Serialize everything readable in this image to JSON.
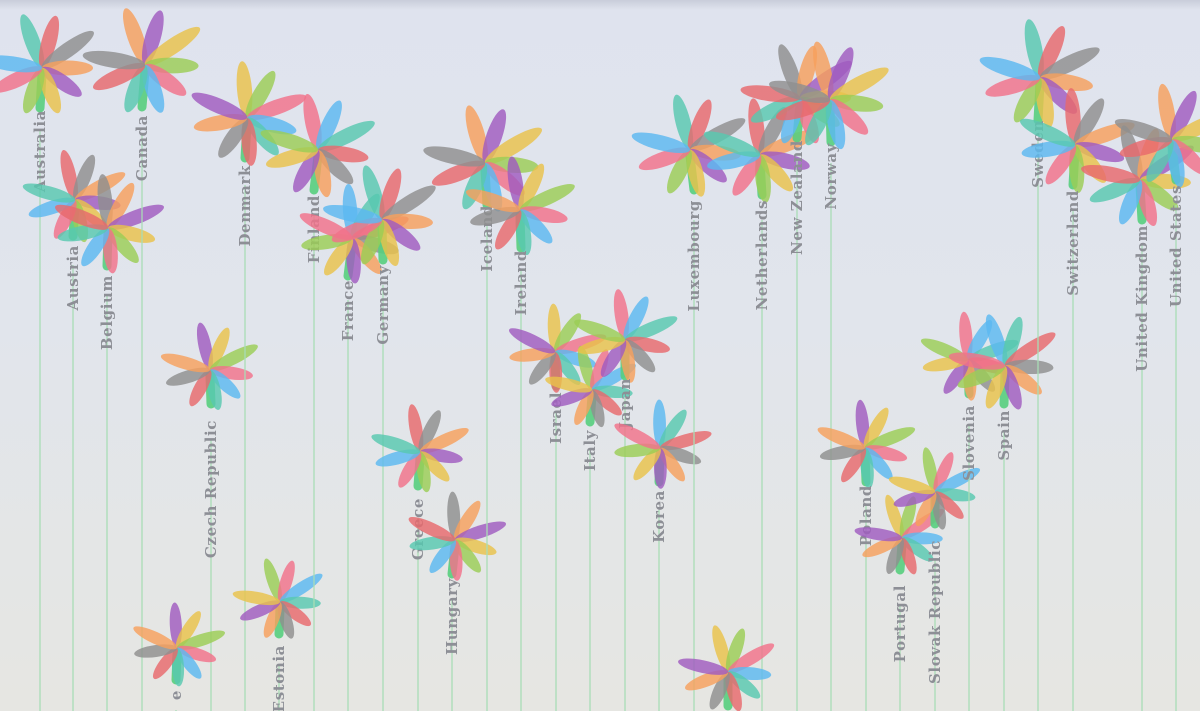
{
  "colors": {
    "stem": "#a9dcb6",
    "stalk": "#58cf7f",
    "label": "#8d8f96",
    "petals": [
      "#58c8b0",
      "#e8696c",
      "#8f8f8f",
      "#f7a05d",
      "#a05cc0",
      "#e9c24a",
      "#9bcd55",
      "#f2728a",
      "#5bb8f0"
    ]
  },
  "flowers": [
    {
      "label": "Australia"
    },
    {
      "label": "Austria"
    },
    {
      "label": "Belgium"
    },
    {
      "label": "Canada"
    },
    {
      "label": "Czech Republic"
    },
    {
      "label": "Denmark"
    },
    {
      "label": "Estonia"
    },
    {
      "label": "Finland"
    },
    {
      "label": "France"
    },
    {
      "label": "Germany"
    },
    {
      "label": "Greece"
    },
    {
      "label": "Hungary"
    },
    {
      "label": "Iceland"
    },
    {
      "label": "Ireland"
    },
    {
      "label": "Israel"
    },
    {
      "label": "Italy"
    },
    {
      "label": "Japan"
    },
    {
      "label": "Korea"
    },
    {
      "label": "Luxembourg"
    },
    {
      "label": "Netherlands"
    },
    {
      "label": "New Zealand"
    },
    {
      "label": "Norway"
    },
    {
      "label": "Poland"
    },
    {
      "label": "Portugal"
    },
    {
      "label": "Slovak Republic"
    },
    {
      "label": "Slovenia"
    },
    {
      "label": "Spain"
    },
    {
      "label": "Sweden"
    },
    {
      "label": "Switzerland"
    },
    {
      "label": "United Kingdom"
    },
    {
      "label": "United States"
    },
    {
      "label": "e"
    },
    {
      "label": ""
    }
  ]
}
